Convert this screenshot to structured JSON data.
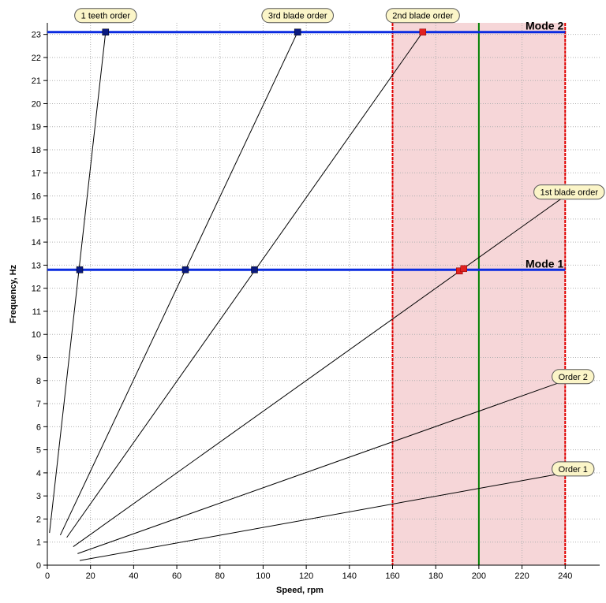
{
  "chart_data": {
    "type": "line",
    "title": "",
    "xlabel": "Speed, rpm",
    "ylabel": "Frequency, Hz",
    "xlim": [
      0,
      256
    ],
    "ylim": [
      0,
      23.5
    ],
    "x_ticks": [
      0,
      20,
      40,
      60,
      80,
      100,
      120,
      140,
      160,
      180,
      200,
      220,
      240
    ],
    "y_ticks": [
      0,
      1,
      2,
      3,
      4,
      5,
      6,
      7,
      8,
      9,
      10,
      11,
      12,
      13,
      14,
      15,
      16,
      17,
      18,
      19,
      20,
      21,
      22,
      23
    ],
    "grid": true,
    "shaded_region": {
      "x_start": 160,
      "x_end": 240,
      "color": "#f6d6d8",
      "border_color": "#e00000"
    },
    "reference_line": {
      "x": 200,
      "color": "#008000"
    },
    "modes": [
      {
        "name": "Mode 2",
        "frequency": 23.1,
        "x_start": 0,
        "x_end": 240
      },
      {
        "name": "Mode 1",
        "frequency": 12.8,
        "x_start": 0,
        "x_end": 240
      }
    ],
    "orders": [
      {
        "name": "1 teeth order",
        "points": [
          [
            1,
            1.4
          ],
          [
            27,
            23.1
          ]
        ]
      },
      {
        "name": "3rd blade order",
        "points": [
          [
            6,
            1.3
          ],
          [
            116,
            23.1
          ]
        ]
      },
      {
        "name": "2nd blade order",
        "points": [
          [
            9,
            1.2
          ],
          [
            174,
            23.1
          ]
        ]
      },
      {
        "name": "1st blade order",
        "points": [
          [
            12,
            0.8
          ],
          [
            240,
            16
          ]
        ]
      },
      {
        "name": "Order 2",
        "points": [
          [
            14,
            0.5
          ],
          [
            240,
            8
          ]
        ]
      },
      {
        "name": "Order 1",
        "points": [
          [
            15,
            0.2
          ],
          [
            240,
            4
          ]
        ]
      }
    ],
    "crossings_blue": [
      [
        27,
        23.1
      ],
      [
        116,
        23.1
      ],
      [
        15,
        12.8
      ],
      [
        64,
        12.8
      ],
      [
        96,
        12.8
      ]
    ],
    "crossings_red": [
      [
        174,
        23.1
      ],
      [
        191,
        12.75
      ],
      [
        193,
        12.85
      ]
    ]
  },
  "colors": {
    "mode_line": "#0a2be0",
    "order_line": "#000000",
    "grid": "#b0b0b0",
    "label_bg": "#fbf5c8",
    "marker_blue": "#0a1a80",
    "marker_red": "#e02020"
  }
}
